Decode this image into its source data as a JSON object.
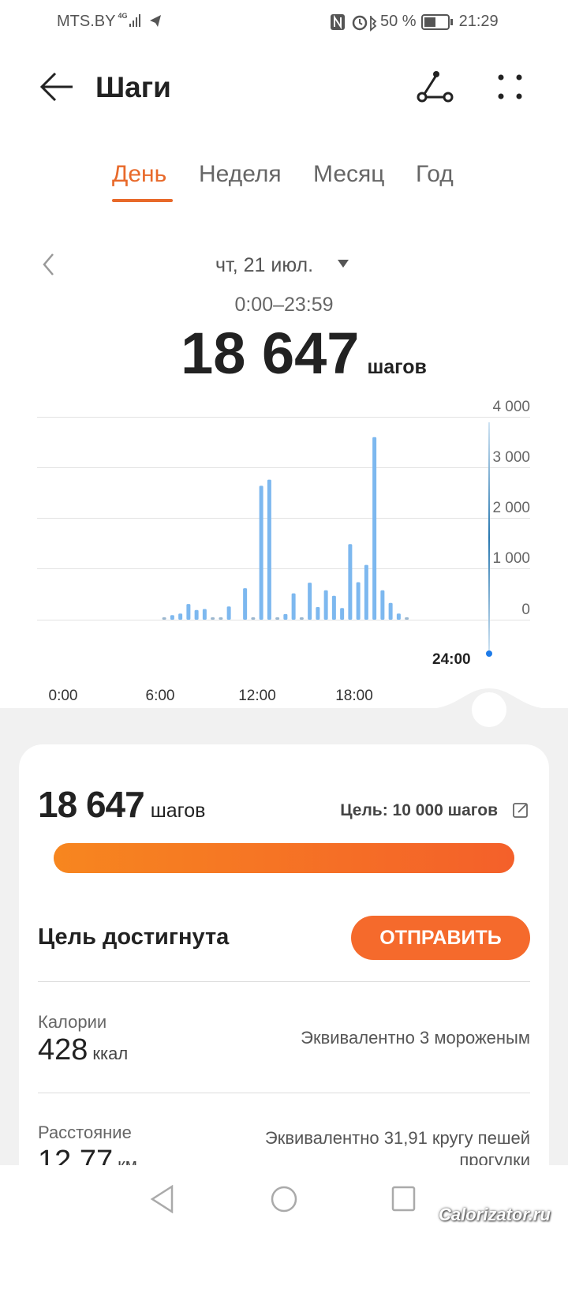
{
  "status_bar": {
    "carrier": "MTS.BY",
    "network": "4G",
    "battery": "50 %",
    "time": "21:29",
    "icons": [
      "signal-icon",
      "telegram-icon",
      "nfc-icon",
      "alarm-icon",
      "bluetooth-icon",
      "battery-icon"
    ]
  },
  "header": {
    "title": "Шаги",
    "icons": [
      "back-arrow-icon",
      "share-graph-icon",
      "more-icon"
    ]
  },
  "tabs": [
    {
      "label": "День",
      "active": true
    },
    {
      "label": "Неделя"
    },
    {
      "label": "Месяц"
    },
    {
      "label": "Год"
    }
  ],
  "date": {
    "label": "чт, 21 июл.",
    "range": "0:00–23:59"
  },
  "total": {
    "value": "18 647",
    "unit": "шагов"
  },
  "accent": "#f56a2c",
  "chart_data": {
    "type": "bar",
    "x": [
      "6:00",
      "6:30",
      "7:00",
      "7:30",
      "8:00",
      "8:30",
      "9:00",
      "9:30",
      "10:00",
      "11:00",
      "11:30",
      "12:00",
      "12:30",
      "13:00",
      "13:30",
      "14:00",
      "14:30",
      "15:00",
      "15:30",
      "16:00",
      "16:30",
      "17:00",
      "17:30",
      "18:00",
      "18:30",
      "19:00",
      "19:30",
      "20:00",
      "20:30",
      "21:00"
    ],
    "values": [
      30,
      90,
      120,
      310,
      190,
      210,
      30,
      30,
      260,
      620,
      30,
      2640,
      2760,
      30,
      110,
      520,
      30,
      730,
      250,
      580,
      470,
      230,
      1490,
      740,
      1080,
      3600,
      580,
      330,
      120,
      30
    ],
    "ylim": [
      0,
      4000
    ],
    "y_ticks": [
      "0",
      "1 000",
      "2 000",
      "3 000",
      "4 000"
    ],
    "x_ticks": [
      "0:00",
      "6:00",
      "12:00",
      "18:00"
    ],
    "cursor_label": "24:00",
    "grid": true,
    "color": "#7db8ef"
  },
  "summary": {
    "steps": "18 647",
    "steps_unit": "шагов",
    "goal": "Цель: 10 000 шагов",
    "progress_percent": 100,
    "goal_status": "Цель достигнута",
    "send_button": "ОТПРАВИТЬ",
    "calories_label": "Калории",
    "calories_value": "428",
    "calories_unit": "ккал",
    "calories_equiv": "Эквивалентно 3 мороженым",
    "distance_label": "Расстояние",
    "distance_value": "12,77",
    "distance_unit": "км",
    "distance_equiv_1": "Эквивалентно 31,91 кругу пешей",
    "distance_equiv_2": "прогулки"
  },
  "nav": [
    "back-icon",
    "home-icon",
    "recents-icon"
  ],
  "watermark": "Calorizator.ru"
}
